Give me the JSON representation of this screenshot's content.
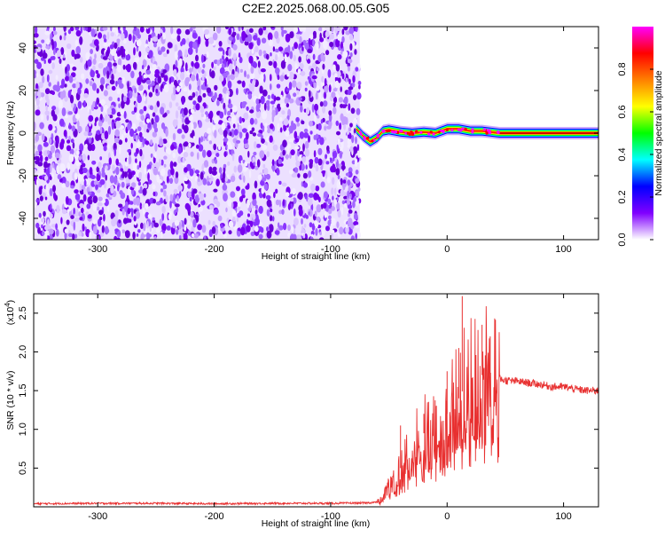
{
  "title": "C2E2.2025.068.00.05.G05",
  "chart_data": [
    {
      "type": "heatmap",
      "xlabel": "Height of straight line (km)",
      "ylabel": "Frequency (Hz)",
      "xlim": [
        -355,
        130
      ],
      "ylim": [
        -50,
        50
      ],
      "xticks": [
        -300,
        -200,
        -100,
        0,
        100
      ],
      "yticks": [
        -40,
        -20,
        0,
        20,
        40
      ],
      "noise_region_x": [
        -355,
        -75
      ],
      "signal": {
        "x_start": -78,
        "x_end": 130,
        "trace": [
          {
            "x": -78,
            "y": 2.0
          },
          {
            "x": -72,
            "y": -1.5
          },
          {
            "x": -66,
            "y": -4.0
          },
          {
            "x": -60,
            "y": -2.0
          },
          {
            "x": -55,
            "y": 1.0
          },
          {
            "x": -50,
            "y": 1.5
          },
          {
            "x": -40,
            "y": 0.5
          },
          {
            "x": -30,
            "y": 0.0
          },
          {
            "x": -20,
            "y": 0.5
          },
          {
            "x": -10,
            "y": 0.0
          },
          {
            "x": 0,
            "y": 2.0
          },
          {
            "x": 10,
            "y": 2.0
          },
          {
            "x": 20,
            "y": 1.0
          },
          {
            "x": 30,
            "y": 1.0
          },
          {
            "x": 45,
            "y": 0.0
          },
          {
            "x": 60,
            "y": 0.0
          },
          {
            "x": 130,
            "y": 0.0
          }
        ]
      },
      "colorbar": {
        "label": "Normalized spectral amplitude",
        "range": [
          0,
          1
        ],
        "ticks": [
          "0.0",
          "0.2",
          "0.4",
          "0.6",
          "0.8"
        ],
        "tick_values": [
          0.0,
          0.2,
          0.4,
          0.6,
          0.8
        ],
        "colors": [
          "#ffffff",
          "#8000ff",
          "#0000ff",
          "#00ffff",
          "#00ff00",
          "#ffff00",
          "#ff8000",
          "#ff0000",
          "#ff00ff"
        ]
      }
    },
    {
      "type": "line",
      "xlabel": "Height of straight line (km)",
      "ylabel": "SNR (10 * v/v)",
      "scale_note": {
        "base": "(x10",
        "exp": "4",
        "close": ")"
      },
      "xlim": [
        -355,
        130
      ],
      "ylim": [
        0,
        2.75
      ],
      "xticks": [
        -300,
        -200,
        -100,
        0,
        100
      ],
      "yticks": [
        0.5,
        1.0,
        1.5,
        2.0,
        2.5
      ],
      "ytick_labels": [
        "0.5",
        "1.0",
        "1.5",
        "2.0",
        "2.5"
      ],
      "color": "#e83030",
      "series": [
        {
          "values": [
            [
              -355,
              0.04
            ],
            [
              -300,
              0.045
            ],
            [
              -250,
              0.045
            ],
            [
              -200,
              0.04
            ],
            [
              -150,
              0.045
            ],
            [
              -100,
              0.045
            ],
            [
              -70,
              0.05
            ],
            [
              -60,
              0.06
            ],
            [
              -55,
              0.12
            ],
            [
              -50,
              0.25
            ],
            [
              -45,
              0.4
            ],
            [
              -40,
              0.5
            ],
            [
              -35,
              0.6
            ],
            [
              -30,
              0.75
            ],
            [
              -25,
              0.85
            ],
            [
              -20,
              0.95
            ],
            [
              -15,
              1.0
            ],
            [
              -10,
              1.05
            ],
            [
              -5,
              1.15
            ],
            [
              0,
              1.2
            ],
            [
              5,
              1.3
            ],
            [
              10,
              1.4
            ],
            [
              15,
              1.55
            ],
            [
              20,
              1.6
            ],
            [
              25,
              1.65
            ],
            [
              30,
              1.7
            ],
            [
              35,
              1.72
            ],
            [
              40,
              1.7
            ],
            [
              45,
              1.65
            ],
            [
              50,
              1.63
            ],
            [
              60,
              1.62
            ],
            [
              70,
              1.6
            ],
            [
              80,
              1.58
            ],
            [
              90,
              1.55
            ],
            [
              100,
              1.55
            ],
            [
              110,
              1.52
            ],
            [
              120,
              1.5
            ],
            [
              130,
              1.5
            ]
          ],
          "peaks": [
            [
              13,
              2.72
            ],
            [
              30,
              2.35
            ],
            [
              37,
              2.2
            ],
            [
              -40,
              1.05
            ],
            [
              -20,
              1.2
            ],
            [
              -10,
              1.3
            ],
            [
              0,
              1.75
            ],
            [
              10,
              2.05
            ]
          ]
        }
      ]
    }
  ]
}
